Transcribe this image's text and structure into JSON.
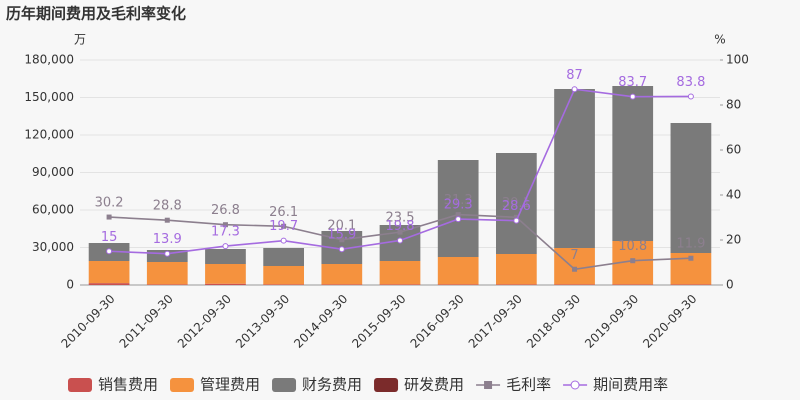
{
  "chart_data": {
    "type": "bar",
    "title": "历年期间费用及毛利率变化",
    "y_unit": "万",
    "y2_unit": "%",
    "categories": [
      "2010-09-30",
      "2011-09-30",
      "2012-09-30",
      "2013-09-30",
      "2014-09-30",
      "2015-09-30",
      "2016-09-30",
      "2017-09-30",
      "2018-09-30",
      "2019-09-30",
      "2020-09-30"
    ],
    "ylim": [
      0,
      180000
    ],
    "yticks": [
      0,
      {
        "value": 30000,
        "label": "30,000"
      },
      {
        "value": 60000,
        "label": "60,000"
      },
      {
        "value": 90000,
        "label": "90,000"
      },
      {
        "value": 120000,
        "label": "120,000"
      },
      {
        "value": 150000,
        "label": "150,000"
      },
      {
        "value": 180000,
        "label": "180,000"
      }
    ],
    "y2lim": [
      0,
      100
    ],
    "y2ticks": [
      0,
      20,
      40,
      60,
      80,
      100
    ],
    "grid": true,
    "legend": "bottom",
    "series": [
      {
        "name": "销售费用",
        "type": "bar",
        "color": "#c9504f",
        "values": [
          1500,
          500,
          1000,
          500,
          500,
          500,
          500,
          500,
          500,
          500,
          500
        ]
      },
      {
        "name": "管理费用",
        "type": "bar",
        "color": "#f5923e",
        "values": [
          17700,
          17900,
          15800,
          14700,
          16300,
          18700,
          21900,
          24300,
          29100,
          34700,
          25100
        ]
      },
      {
        "name": "财务费用",
        "type": "bar",
        "color": "#7a7a7a",
        "values": [
          14400,
          9600,
          12000,
          14400,
          26400,
          28800,
          77600,
          80800,
          127200,
          124000,
          104000
        ]
      },
      {
        "name": "研发费用",
        "type": "bar",
        "color": "#7b2b2b",
        "values": [
          0,
          0,
          0,
          0,
          0,
          0,
          0,
          0,
          0,
          0,
          0
        ]
      },
      {
        "name": "毛利率",
        "type": "line",
        "axis": "y2",
        "color": "#8c7f8e",
        "marker": "square",
        "values": [
          30.2,
          28.8,
          26.8,
          26.1,
          20.1,
          23.5,
          31.3,
          30.1,
          7,
          10.8,
          11.9
        ]
      },
      {
        "name": "期间费用率",
        "type": "line",
        "axis": "y2",
        "color": "#a56be0",
        "marker": "circle",
        "values": [
          15,
          13.9,
          17.3,
          19.7,
          15.9,
          19.8,
          29.3,
          28.6,
          87,
          83.7,
          83.8
        ]
      }
    ]
  }
}
